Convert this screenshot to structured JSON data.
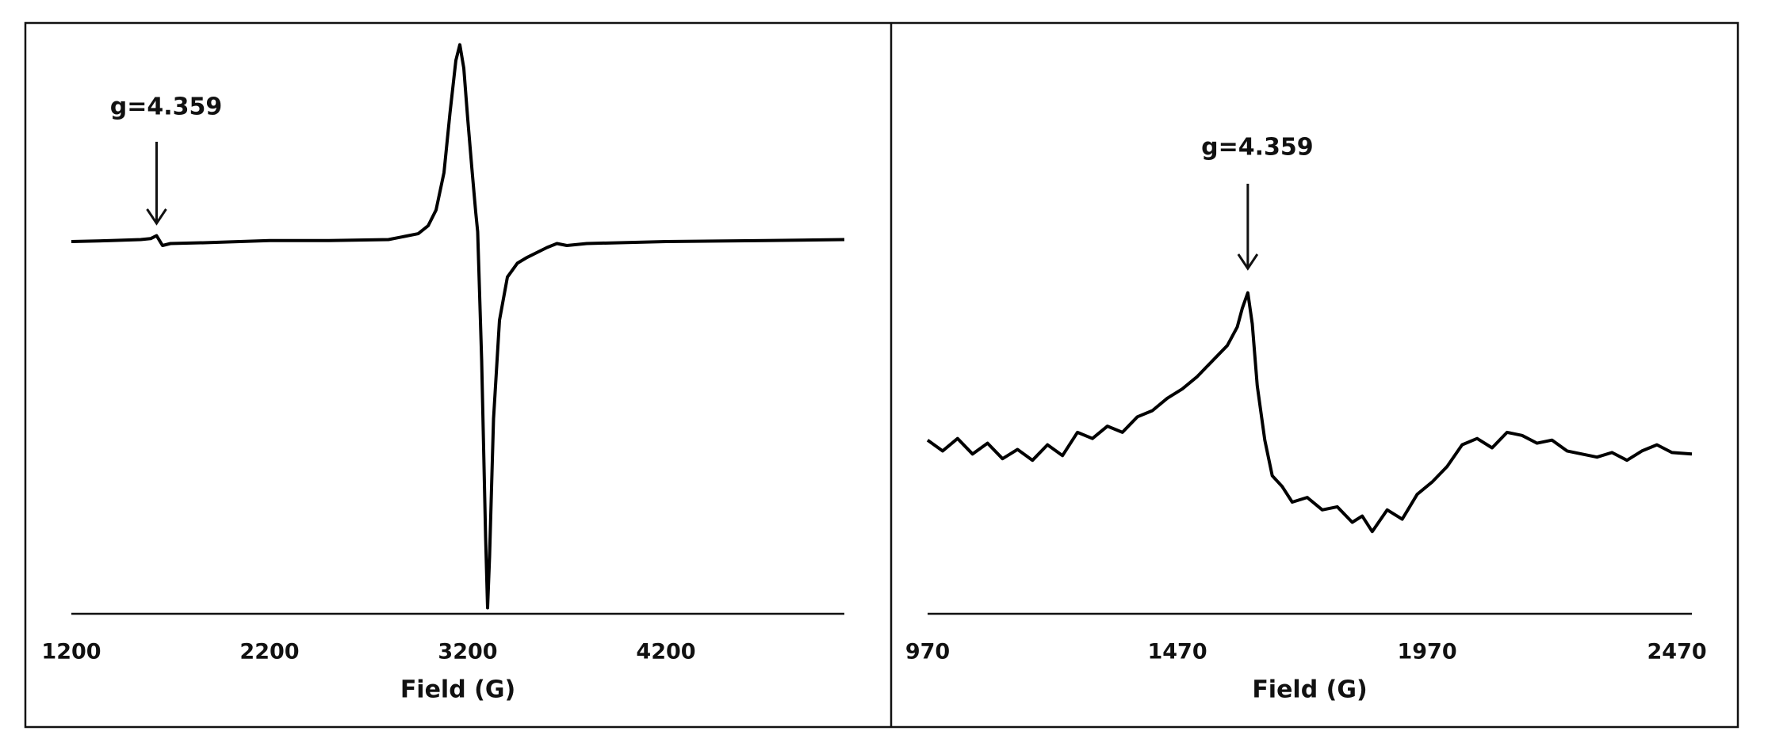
{
  "chart_data": [
    {
      "type": "line",
      "xlabel": "Field (G)",
      "xlim": [
        1200,
        5100
      ],
      "xticks": [
        1200,
        2200,
        3200,
        4200
      ],
      "ylim": [
        -189,
        111
      ],
      "grid": false,
      "color": "#000000",
      "x": [
        1200,
        1400,
        1550,
        1600,
        1630,
        1660,
        1700,
        1900,
        2200,
        2500,
        2800,
        2950,
        3000,
        3040,
        3080,
        3110,
        3140,
        3160,
        3180,
        3200,
        3220,
        3240,
        3250,
        3270,
        3290,
        3300,
        3310,
        3330,
        3360,
        3400,
        3450,
        3500,
        3600,
        3650,
        3700,
        3800,
        4200,
        4700,
        5100
      ],
      "values": [
        0,
        0.5,
        1,
        1.5,
        3,
        -2,
        -1,
        -0.5,
        0.5,
        0.5,
        1,
        4,
        8,
        16,
        35,
        65,
        92,
        100,
        88,
        62,
        38,
        15,
        5,
        -60,
        -150,
        -186,
        -160,
        -90,
        -40,
        -18,
        -11,
        -8,
        -3,
        -1,
        -2,
        -1,
        0,
        0.5,
        1
      ],
      "annotations": [
        {
          "text": "g=4.359",
          "x": 1630
        }
      ]
    },
    {
      "type": "line",
      "xlabel": "Field (G)",
      "xlim": [
        970,
        2500
      ],
      "xticks": [
        970,
        1470,
        1970,
        2470
      ],
      "ylim": [
        -107,
        274
      ],
      "grid": false,
      "color": "#000000",
      "x": [
        970,
        1000,
        1030,
        1060,
        1090,
        1120,
        1150,
        1180,
        1210,
        1240,
        1270,
        1300,
        1330,
        1360,
        1390,
        1420,
        1450,
        1480,
        1510,
        1540,
        1570,
        1590,
        1600,
        1611,
        1620,
        1630,
        1645,
        1660,
        1680,
        1700,
        1730,
        1760,
        1790,
        1820,
        1840,
        1860,
        1890,
        1920,
        1950,
        1980,
        2010,
        2040,
        2070,
        2100,
        2130,
        2160,
        2190,
        2220,
        2250,
        2280,
        2310,
        2340,
        2370,
        2400,
        2430,
        2460,
        2500
      ],
      "values": [
        5,
        -2,
        6,
        -4,
        3,
        -7,
        -1,
        -8,
        2,
        -5,
        10,
        6,
        14,
        10,
        20,
        24,
        32,
        38,
        46,
        56,
        66,
        78,
        90,
        100,
        80,
        40,
        5,
        -18,
        -25,
        -35,
        -32,
        -40,
        -38,
        -48,
        -44,
        -54,
        -40,
        -46,
        -30,
        -22,
        -12,
        2,
        6,
        0,
        10,
        8,
        3,
        5,
        -2,
        -4,
        -6,
        -3,
        -8,
        -2,
        2,
        -3,
        -4
      ],
      "annotations": [
        {
          "text": "g=4.359",
          "x": 1611
        }
      ]
    }
  ]
}
